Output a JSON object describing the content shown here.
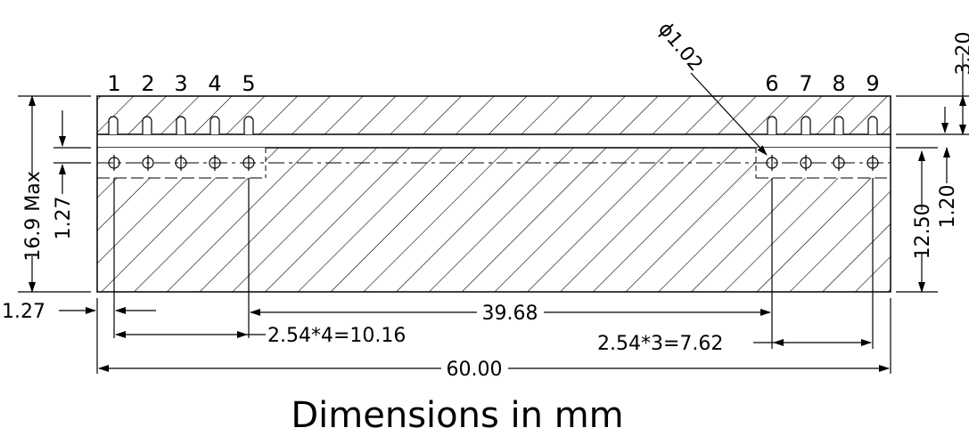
{
  "pins_left": [
    "1",
    "2",
    "3",
    "4",
    "5"
  ],
  "pins_right": [
    "6",
    "7",
    "8",
    "9"
  ],
  "dims": {
    "dia": "ϕ1.02",
    "d320": "3.20",
    "d169": "16.9 Max",
    "d127v": "1.27",
    "d1250": "12.50",
    "d120": "1.20",
    "d127h": "1.27",
    "d3968": "39.68",
    "d1016": "2.54*4=10.16",
    "d762": "2.54*3=7.62",
    "d6000": "60.00"
  },
  "caption": "Dimensions in mm",
  "colors": {
    "line": "#000000",
    "background": "#ffffff"
  }
}
